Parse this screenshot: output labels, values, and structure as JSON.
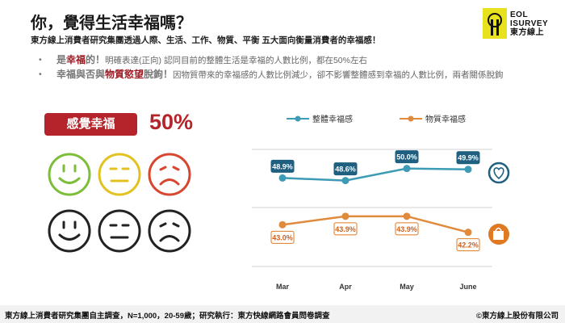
{
  "header": {
    "title": "你，覺得生活幸福嗎？",
    "subtitle": "東方線上消費者研究集團透過人際、生活、工作、物質、平衡 五大面向衡量消費者的幸福感！"
  },
  "logo": {
    "line1": "EOL",
    "line2": "ISURVEY",
    "line3": "東方線上"
  },
  "bullets": [
    {
      "dot": "•",
      "lead": "是",
      "hl": "幸福",
      "lead2": "的！",
      "text": "明確表達(正向) 認同目前的整體生活是幸福的人數比例，都在50%左右"
    },
    {
      "dot": "•",
      "lead": "幸福與否與",
      "hl": "物質慾望",
      "lead2": "脫鉤！",
      "text": "因物質帶來的幸福感的人數比例減少，卻不影響整體感到幸福的人數比例，兩者關係脫鉤"
    }
  ],
  "happiness": {
    "label": "感覺幸福",
    "percent": "50%"
  },
  "faces": [
    {
      "name": "happy-face-icon",
      "color": "#7dbd3a"
    },
    {
      "name": "neutral-face-icon",
      "color": "#e3c21f"
    },
    {
      "name": "sad-face-icon",
      "color": "#d9462f"
    },
    {
      "name": "happy-face-icon",
      "color": "#222222"
    },
    {
      "name": "neutral-face-icon",
      "color": "#222222"
    },
    {
      "name": "sad-face-icon",
      "color": "#222222"
    }
  ],
  "chart_data": {
    "type": "line",
    "categories": [
      "Mar",
      "Apr",
      "May",
      "June"
    ],
    "series": [
      {
        "name": "整體幸福感",
        "values": [
          48.9,
          48.6,
          50.0,
          49.9
        ],
        "color": "#3d9bb5",
        "label_bg": "#1f5f80",
        "icon": "heart-icon"
      },
      {
        "name": "物質幸福感",
        "values": [
          43.0,
          43.9,
          43.9,
          42.2
        ],
        "color": "#e08a3c",
        "label_bg": "#e07a22",
        "icon": "shopping-bag-icon"
      }
    ]
  },
  "footer": {
    "source": "東方線上消費者研究集團自主調查，N=1,000，20-59歲；研究執行：東方快線網路會員問卷調查",
    "copyright": "©東方線上股份有限公司"
  }
}
